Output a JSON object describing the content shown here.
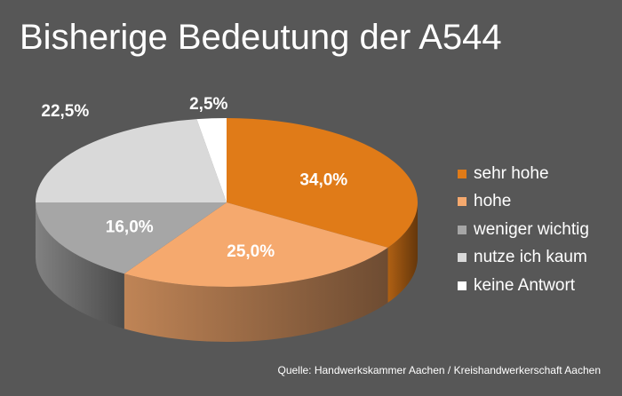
{
  "chart_data": {
    "type": "pie",
    "title": "Bisherige Bedeutung der A544",
    "unit": "%",
    "categories": [
      "sehr hohe",
      "hohe",
      "weniger wichtig",
      "nutze ich kaum",
      "keine Antwort"
    ],
    "values": [
      34.0,
      25.0,
      16.0,
      22.5,
      2.5
    ],
    "value_labels": [
      "34,0%",
      "25,0%",
      "16,0%",
      "22,5%",
      "2,5%"
    ],
    "colors": [
      "#e07b18",
      "#f5a96e",
      "#a6a6a6",
      "#d9d9d9",
      "#ffffff"
    ],
    "legend_position": "right",
    "style": "3d-pie"
  },
  "source": "Quelle: Handwerkskammer Aachen / Kreishandwerkerschaft Aachen"
}
